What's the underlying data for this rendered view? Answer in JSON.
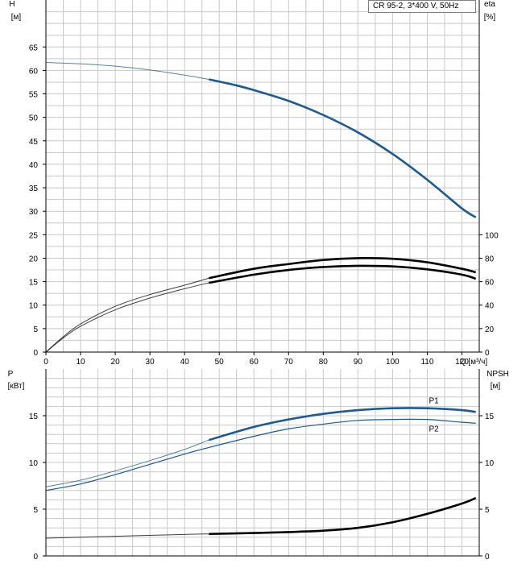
{
  "chart_data": [
    {
      "type": "line",
      "title": "CR 95-2, 3*400 V, 50Hz",
      "xlabel": "Q [м³/ч]",
      "xlim": [
        0,
        125
      ],
      "x_ticks": [
        0,
        10,
        20,
        30,
        40,
        50,
        60,
        70,
        80,
        90,
        100,
        110,
        120
      ],
      "ylabel_left": "H",
      "ylabel_left_unit": "[м]",
      "ylim_left": [
        0,
        75
      ],
      "y_ticks_left": [
        0,
        5,
        10,
        15,
        20,
        25,
        30,
        35,
        40,
        45,
        50,
        55,
        60,
        65
      ],
      "ylabel_right": "eta",
      "ylabel_right_unit": "[%]",
      "ylim_right": [
        0,
        300
      ],
      "y_ticks_right": [
        0,
        20,
        40,
        60,
        80,
        100
      ],
      "grid": true,
      "series": [
        {
          "key": "H",
          "axis": "left",
          "color": "#1b5a96",
          "x": [
            0,
            10,
            20,
            30,
            40,
            47,
            55,
            60,
            70,
            80,
            90,
            100,
            110,
            120,
            124
          ],
          "y": [
            61.7,
            61.4,
            60.9,
            60.1,
            59.0,
            58.1,
            56.8,
            55.8,
            53.5,
            50.5,
            46.8,
            42.2,
            36.7,
            30.6,
            28.7
          ],
          "bold_from": 47
        },
        {
          "key": "eta_upper",
          "axis": "right",
          "color": "#000000",
          "x": [
            0,
            5,
            10,
            20,
            30,
            40,
            47,
            60,
            70,
            80,
            90,
            100,
            110,
            120,
            124
          ],
          "y": [
            0,
            13,
            24,
            39,
            49,
            57,
            63,
            71,
            75,
            78.5,
            80,
            79.5,
            76.5,
            71,
            68
          ],
          "bold_from": 47
        },
        {
          "key": "eta_lower",
          "axis": "right",
          "color": "#000000",
          "x": [
            0,
            5,
            10,
            20,
            30,
            40,
            47,
            60,
            70,
            80,
            90,
            100,
            110,
            120,
            124
          ],
          "y": [
            0,
            12,
            22,
            36,
            46,
            54,
            59,
            66,
            70,
            72.5,
            73.5,
            73,
            70.5,
            66,
            62.5
          ],
          "bold_from": 47
        }
      ]
    },
    {
      "type": "line",
      "xlabel": "Q [м³/ч]",
      "xlim": [
        0,
        125
      ],
      "ylabel_left": "P",
      "ylabel_left_unit": "[кВт]",
      "ylim_left": [
        0,
        20
      ],
      "y_ticks_left": [
        0,
        5,
        10,
        15
      ],
      "ylabel_right": "NPSH",
      "ylabel_right_unit": "[м]",
      "ylim_right": [
        0,
        20
      ],
      "y_ticks_right": [
        0,
        5,
        10,
        15
      ],
      "grid": true,
      "series": [
        {
          "key": "P1",
          "name": "P1",
          "axis": "left",
          "color": "#1b5a96",
          "x": [
            0,
            10,
            20,
            30,
            40,
            47,
            60,
            70,
            80,
            90,
            100,
            110,
            120,
            124
          ],
          "y": [
            7.4,
            8.1,
            9.1,
            10.2,
            11.4,
            12.4,
            13.8,
            14.6,
            15.2,
            15.6,
            15.8,
            15.8,
            15.6,
            15.4
          ],
          "bold_from": 47
        },
        {
          "key": "P2",
          "name": "P2",
          "axis": "left",
          "color": "#1b5a96",
          "x": [
            0,
            10,
            20,
            30,
            40,
            47,
            60,
            70,
            80,
            90,
            100,
            110,
            120,
            124
          ],
          "y": [
            7.0,
            7.7,
            8.7,
            9.8,
            10.9,
            11.6,
            12.8,
            13.6,
            14.1,
            14.5,
            14.6,
            14.6,
            14.3,
            14.2
          ],
          "bold_from": -1
        },
        {
          "key": "NPSH",
          "axis": "right",
          "color": "#000000",
          "x": [
            0,
            20,
            40,
            47,
            60,
            70,
            80,
            90,
            100,
            110,
            120,
            124
          ],
          "y": [
            1.9,
            2.1,
            2.3,
            2.35,
            2.45,
            2.55,
            2.7,
            3.0,
            3.6,
            4.5,
            5.6,
            6.2
          ],
          "bold_from": 47
        }
      ]
    }
  ]
}
